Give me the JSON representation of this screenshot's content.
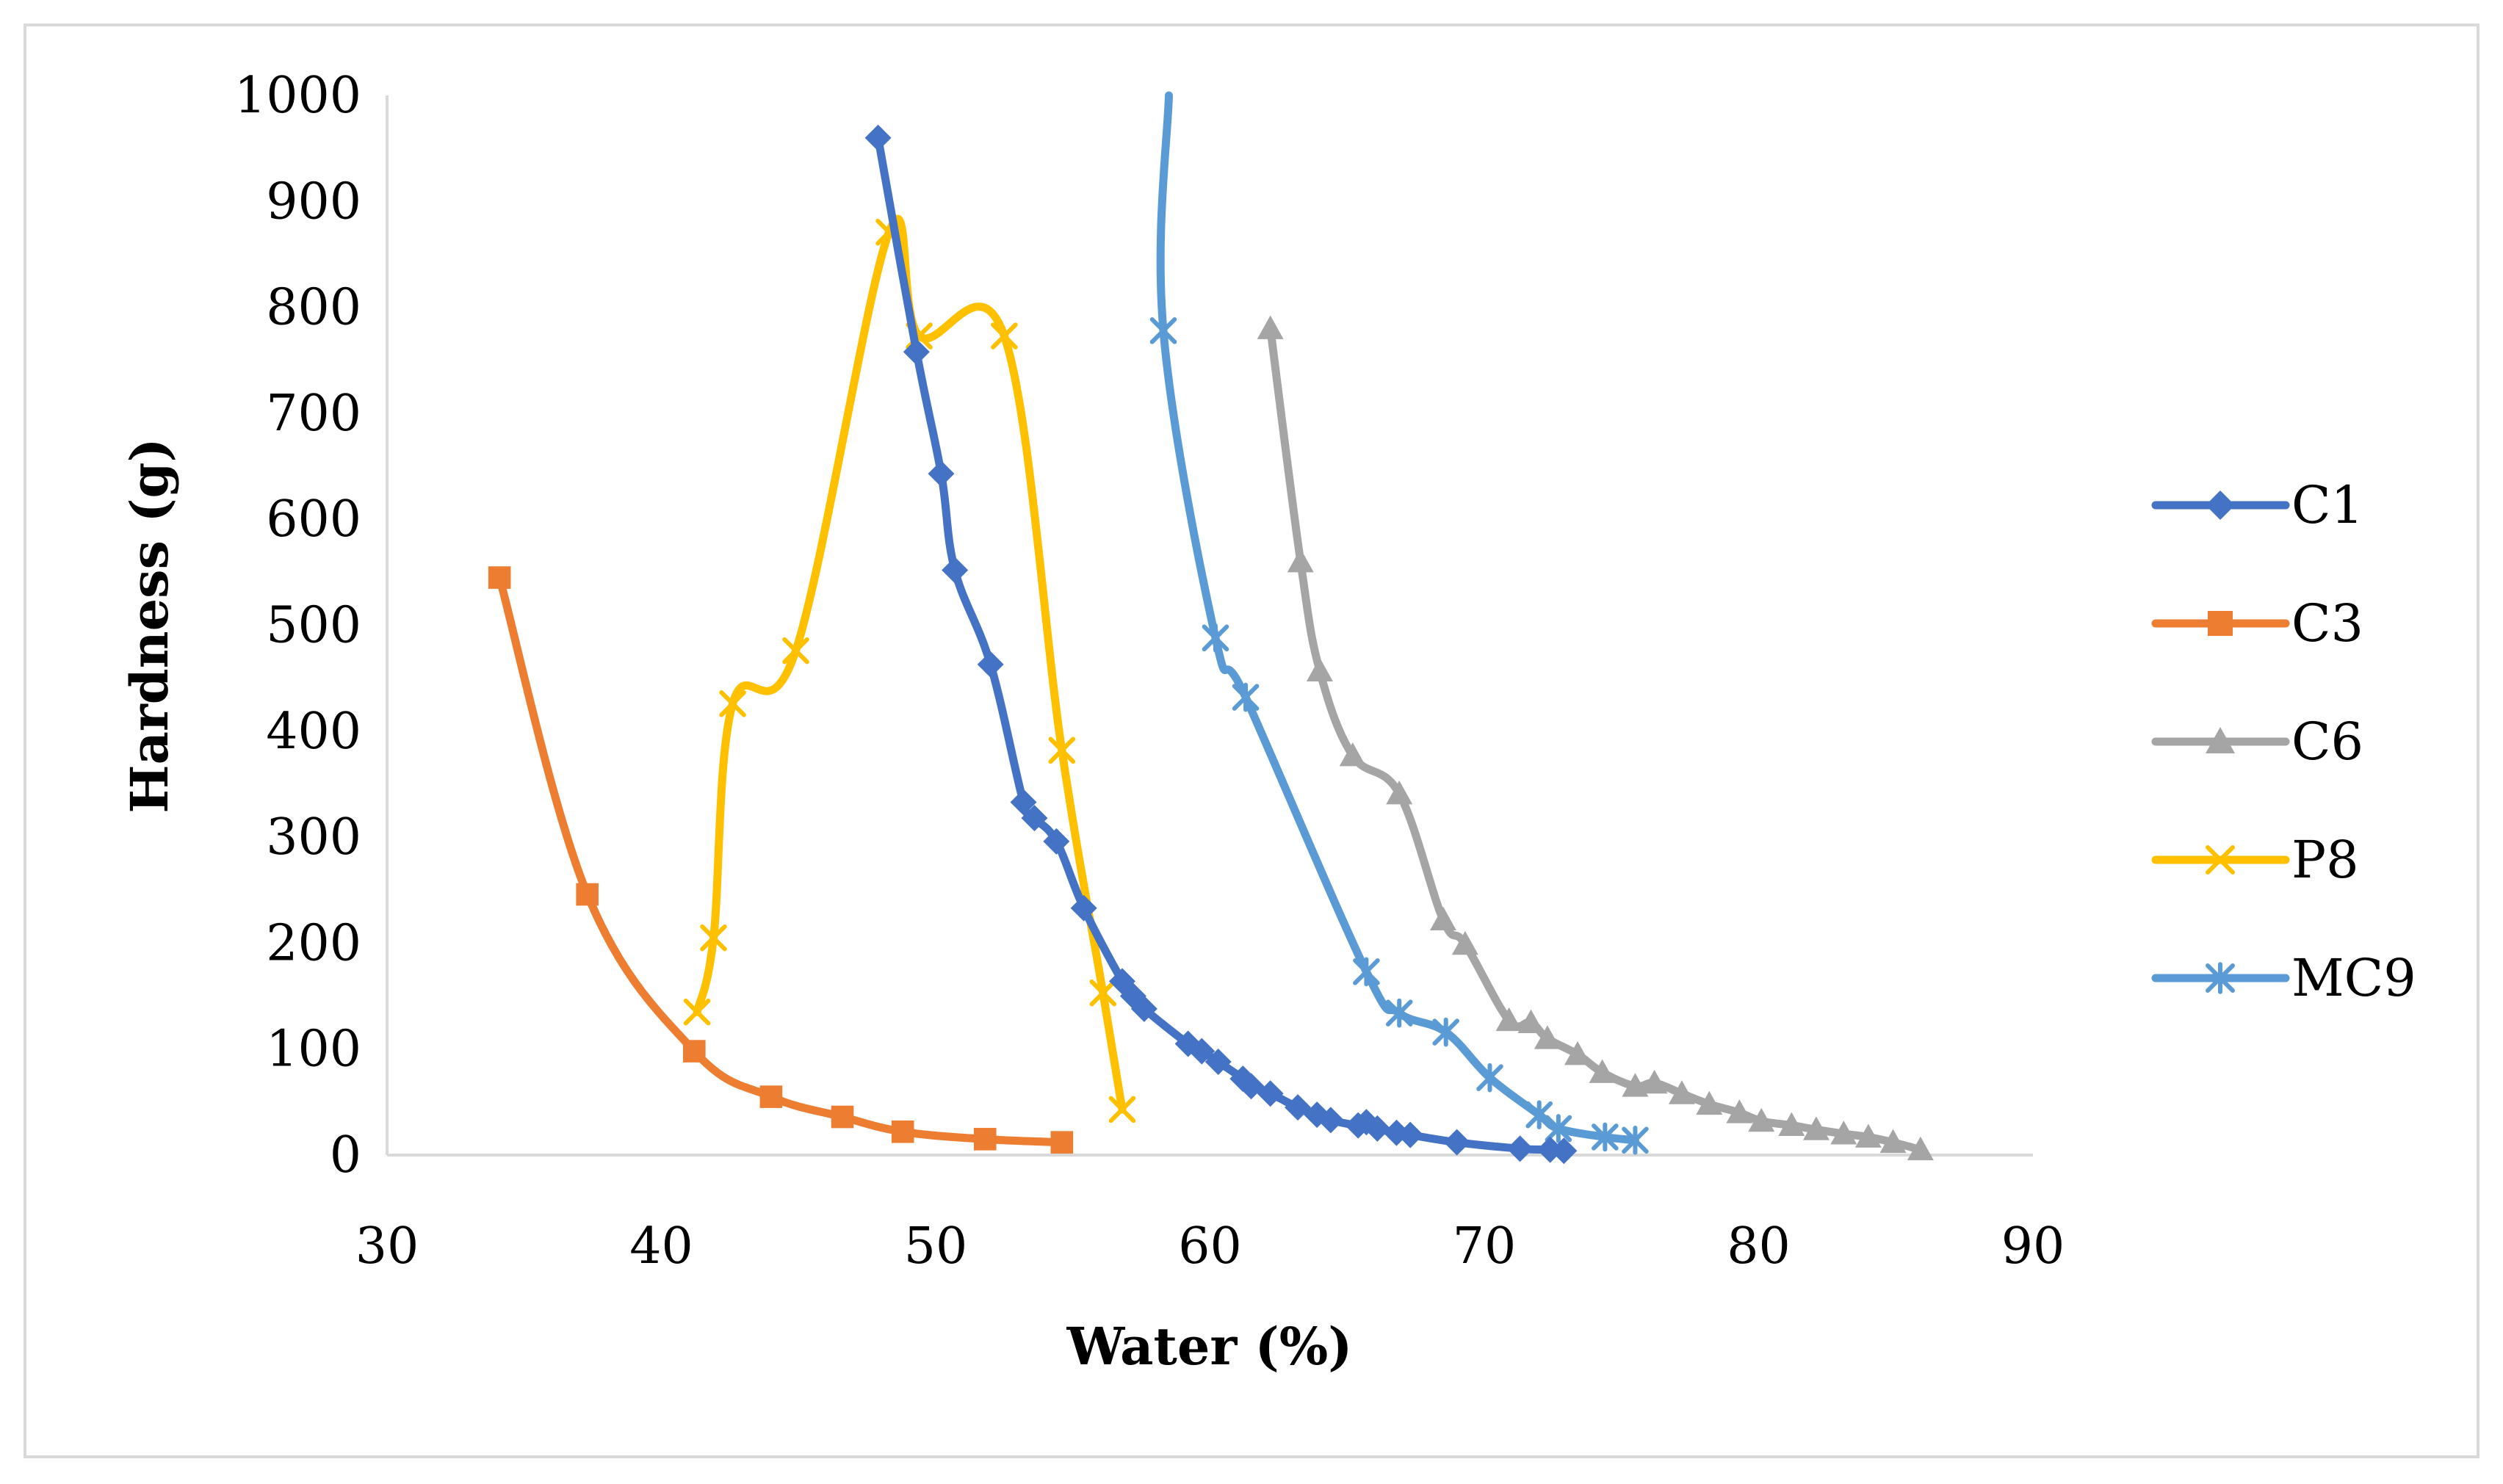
{
  "chart_data": {
    "type": "line",
    "title": "",
    "xlabel": "Water (%)",
    "ylabel": "Hardness (g)",
    "xlim": [
      30,
      90
    ],
    "ylim": [
      0,
      1000
    ],
    "xticks": [
      30,
      40,
      50,
      60,
      70,
      80,
      90
    ],
    "yticks": [
      0,
      100,
      200,
      300,
      400,
      500,
      600,
      700,
      800,
      900,
      1000
    ],
    "grid": false,
    "legend_position": "right",
    "series": [
      {
        "name": "C1",
        "color": "#4472c4",
        "marker": "diamond",
        "points": [
          [
            47.9,
            960
          ],
          [
            49.3,
            758
          ],
          [
            50.2,
            643
          ],
          [
            50.7,
            552
          ],
          [
            52.0,
            463
          ],
          [
            53.2,
            333
          ],
          [
            53.6,
            318
          ],
          [
            54.4,
            296
          ],
          [
            55.4,
            233
          ],
          [
            56.8,
            164
          ],
          [
            57.2,
            150
          ],
          [
            57.6,
            138
          ],
          [
            59.2,
            105
          ],
          [
            59.7,
            98
          ],
          [
            60.3,
            88
          ],
          [
            61.2,
            72
          ],
          [
            61.5,
            65
          ],
          [
            62.2,
            58
          ],
          [
            63.2,
            45
          ],
          [
            63.9,
            38
          ],
          [
            64.4,
            33
          ],
          [
            65.4,
            28
          ],
          [
            65.7,
            31
          ],
          [
            66.1,
            25
          ],
          [
            66.8,
            21
          ],
          [
            67.3,
            19
          ],
          [
            69.0,
            12
          ],
          [
            71.3,
            6
          ],
          [
            72.4,
            5
          ],
          [
            72.9,
            4
          ]
        ]
      },
      {
        "name": "C3",
        "color": "#ed7d31",
        "marker": "square",
        "points": [
          [
            34.1,
            545
          ],
          [
            37.3,
            246
          ],
          [
            41.2,
            98
          ],
          [
            44.0,
            55
          ],
          [
            46.6,
            36
          ],
          [
            48.8,
            22
          ],
          [
            51.8,
            15
          ],
          [
            54.6,
            12
          ]
        ]
      },
      {
        "name": "C6",
        "color": "#a5a5a5",
        "marker": "triangle",
        "points": [
          [
            62.2,
            780
          ],
          [
            63.3,
            560
          ],
          [
            64.0,
            457
          ],
          [
            65.2,
            377
          ],
          [
            66.9,
            341
          ],
          [
            68.5,
            222
          ],
          [
            69.3,
            199
          ],
          [
            70.9,
            127
          ],
          [
            71.7,
            125
          ],
          [
            72.3,
            110
          ],
          [
            73.4,
            95
          ],
          [
            74.3,
            78
          ],
          [
            75.5,
            65
          ],
          [
            76.2,
            68
          ],
          [
            77.2,
            58
          ],
          [
            78.2,
            48
          ],
          [
            79.3,
            40
          ],
          [
            80.1,
            32
          ],
          [
            81.2,
            28
          ],
          [
            82.1,
            24
          ],
          [
            83.1,
            20
          ],
          [
            84.0,
            17
          ],
          [
            84.9,
            12
          ],
          [
            85.9,
            5
          ]
        ]
      },
      {
        "name": "P8",
        "color": "#ffc000",
        "marker": "x",
        "points": [
          [
            41.3,
            135
          ],
          [
            41.9,
            205
          ],
          [
            42.6,
            426
          ],
          [
            44.9,
            476
          ],
          [
            48.3,
            871
          ],
          [
            49.4,
            773
          ],
          [
            52.5,
            773
          ],
          [
            54.6,
            382
          ],
          [
            56.1,
            153
          ],
          [
            56.8,
            43
          ]
        ]
      },
      {
        "name": "MC9",
        "color": "#5b9bd5",
        "marker": "asterisk",
        "points": [
          [
            58.5,
            1000
          ],
          [
            58.3,
            778
          ],
          [
            60.2,
            488
          ],
          [
            61.3,
            432
          ],
          [
            65.7,
            173
          ],
          [
            66.9,
            134
          ],
          [
            68.6,
            116
          ],
          [
            70.2,
            73
          ],
          [
            72.0,
            38
          ],
          [
            72.7,
            25
          ],
          [
            74.4,
            17
          ],
          [
            75.5,
            14
          ]
        ]
      }
    ]
  }
}
